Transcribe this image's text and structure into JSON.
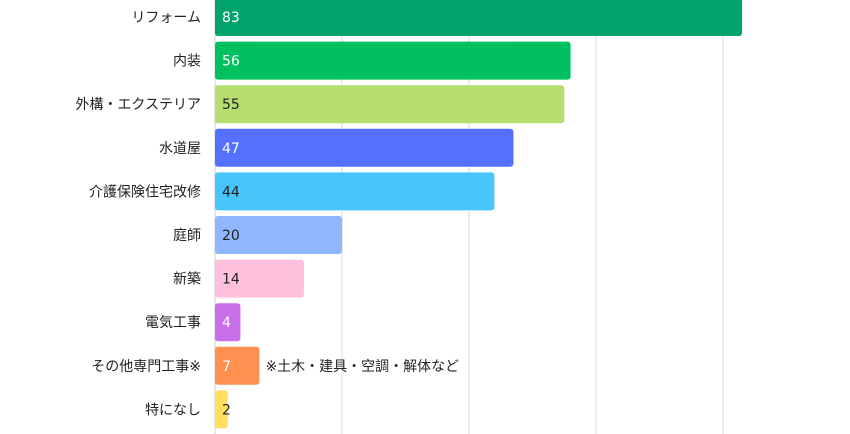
{
  "chart_data": {
    "type": "bar",
    "orientation": "horizontal",
    "categories": [
      "リフォーム",
      "内装",
      "外構・エクステリア",
      "水道屋",
      "介護保険住宅改修",
      "庭師",
      "新築",
      "電気工事",
      "その他専門工事※",
      "特になし"
    ],
    "values": [
      83,
      56,
      55,
      47,
      44,
      20,
      14,
      4,
      7,
      2
    ],
    "colors": [
      "#00a36c",
      "#00c060",
      "#b5de6e",
      "#5470ff",
      "#48c6fb",
      "#90b6ff",
      "#ffc0dc",
      "#c86ee8",
      "#ff9050",
      "#ffde60"
    ],
    "value_label_colors": [
      "#ffffff",
      "#ffffff",
      "#222222",
      "#ffffff",
      "#222222",
      "#222222",
      "#222222",
      "#ffffff",
      "#ffffff",
      "#222222"
    ],
    "xlim": [
      0,
      100
    ],
    "grid": true,
    "annotations": [
      {
        "category": "その他専門工事※",
        "text": "※土木・建具・空調・解体など"
      }
    ]
  }
}
